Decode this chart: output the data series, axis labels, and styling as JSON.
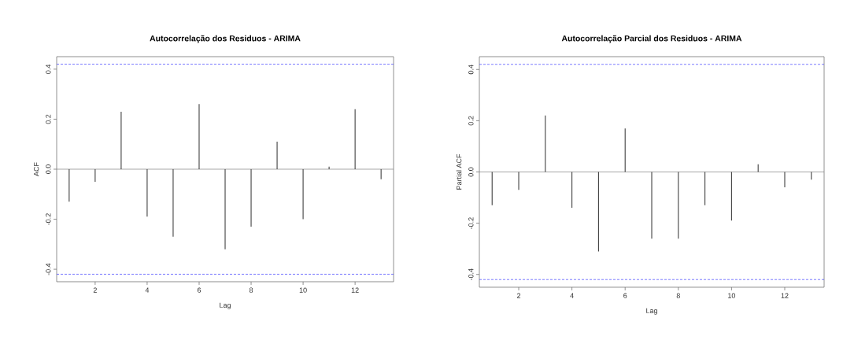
{
  "chart_data": [
    {
      "type": "bar",
      "title": "Autocorrelação dos Residuos - ARIMA",
      "xlabel": "Lag",
      "ylabel": "ACF",
      "color": "#404040",
      "x": [
        1,
        2,
        3,
        4,
        5,
        6,
        7,
        8,
        9,
        10,
        11,
        12,
        13
      ],
      "values": [
        -0.13,
        -0.05,
        0.23,
        -0.19,
        -0.27,
        0.26,
        -0.32,
        -0.23,
        0.11,
        -0.2,
        0.01,
        0.24,
        -0.04
      ],
      "xlim": [
        0.52,
        13.48
      ],
      "ylim": [
        -0.45,
        0.45
      ],
      "xticks": [
        2,
        4,
        6,
        8,
        10,
        12
      ],
      "yticks": [
        -0.4,
        -0.2,
        {
          "value": 0,
          "label": "0.0"
        },
        0.2,
        0.4
      ],
      "ref_lines": [
        {
          "axis": "y",
          "value": 0.42,
          "color": "#4040ff",
          "line_style": "dashed"
        },
        {
          "axis": "y",
          "value": -0.42,
          "color": "#4040ff",
          "line_style": "dashed"
        },
        {
          "axis": "y",
          "value": 0,
          "color": "#808080",
          "line_style": "solid"
        }
      ]
    },
    {
      "type": "bar",
      "title": "Autocorrelação Parcial dos Residuos - ARIMA",
      "xlabel": "Lag",
      "ylabel": "Partial ACF",
      "color": "#404040",
      "x": [
        1,
        2,
        3,
        4,
        5,
        6,
        7,
        8,
        9,
        10,
        11,
        12,
        13
      ],
      "values": [
        -0.13,
        -0.07,
        0.22,
        -0.14,
        -0.31,
        0.17,
        -0.26,
        -0.26,
        -0.13,
        -0.19,
        0.03,
        -0.06,
        -0.03
      ],
      "xlim": [
        0.52,
        13.48
      ],
      "ylim": [
        -0.45,
        0.45
      ],
      "xticks": [
        2,
        4,
        6,
        8,
        10,
        12
      ],
      "yticks": [
        -0.4,
        -0.2,
        {
          "value": 0,
          "label": "0.0"
        },
        0.2,
        0.4
      ],
      "ref_lines": [
        {
          "axis": "y",
          "value": 0.42,
          "color": "#4040ff",
          "line_style": "dashed"
        },
        {
          "axis": "y",
          "value": -0.42,
          "color": "#4040ff",
          "line_style": "dashed"
        },
        {
          "axis": "y",
          "value": 0,
          "color": "#808080",
          "line_style": "solid"
        }
      ]
    }
  ]
}
